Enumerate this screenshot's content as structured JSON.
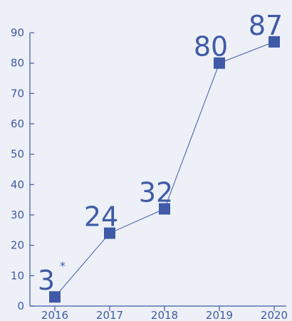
{
  "chart_data": {
    "type": "line",
    "title": "",
    "xlabel": "",
    "ylabel": "",
    "categories": [
      "2016",
      "2017",
      "2018",
      "2019",
      "2020"
    ],
    "series": [
      {
        "values": [
          3,
          24,
          32,
          80,
          87
        ],
        "labels": [
          "3",
          "24",
          "32",
          "80",
          "87"
        ],
        "annotations": [
          "*",
          "",
          "",
          "",
          ""
        ]
      }
    ],
    "ylim": [
      0,
      90
    ],
    "yticks": [
      0,
      10,
      20,
      30,
      40,
      50,
      60,
      70,
      80,
      90
    ],
    "grid": false,
    "legend": "none",
    "marker": "square",
    "colors": {
      "series": "#3f5aa6",
      "text": "#3f5aa6",
      "axis": "#3f5aa6",
      "background": "#edf0f6"
    }
  }
}
